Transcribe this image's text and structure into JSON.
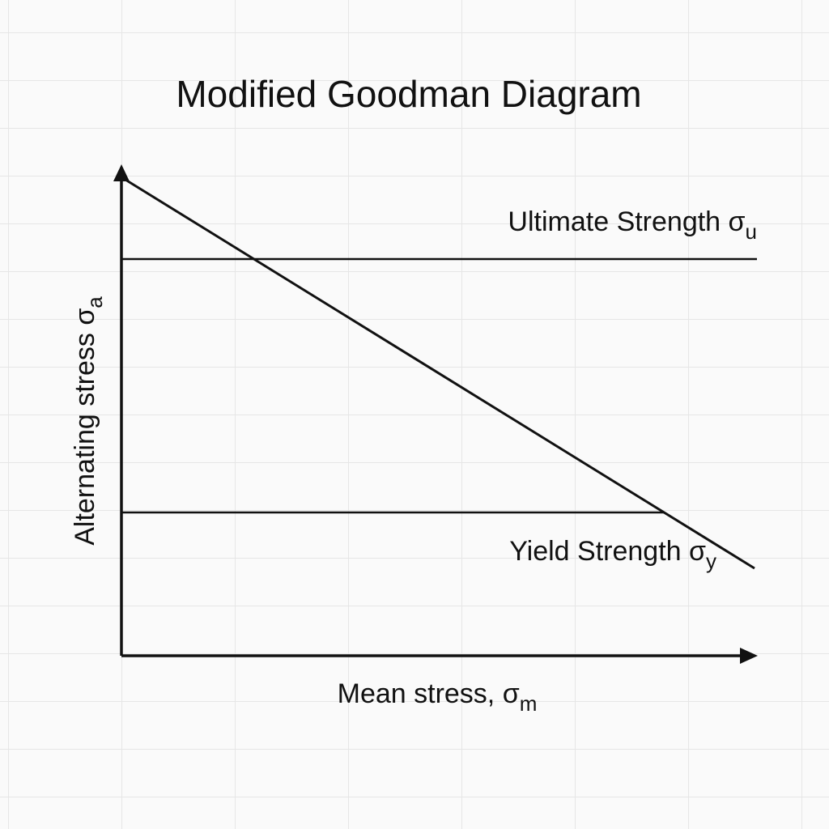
{
  "title": "Modified Goodman Diagram",
  "lines": {
    "ultimate": {
      "text": "Ultimate Strength σ",
      "subscript": "u"
    },
    "yield": {
      "text": "Yield Strength σ",
      "subscript": "y"
    }
  },
  "axes": {
    "y": {
      "text": "Alternating stress σ",
      "subscript": "a"
    },
    "x": {
      "text": "Mean stress, σ",
      "subscript": "m"
    }
  }
}
